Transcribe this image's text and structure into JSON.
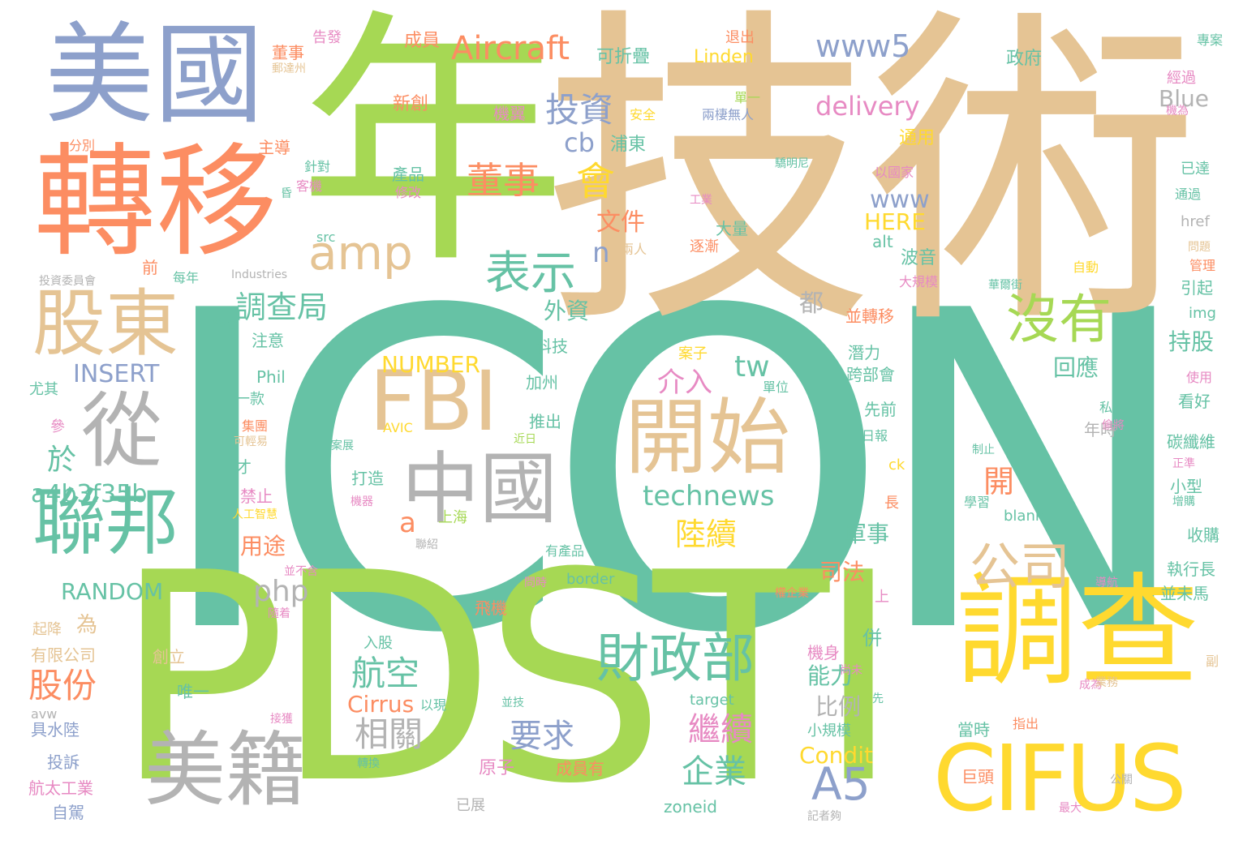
{
  "palette": {
    "teal": "#66c2a5",
    "orange": "#fc8d62",
    "blue": "#8da0cb",
    "pink": "#e78ac3",
    "green": "#a6d854",
    "yellow": "#ffd92f",
    "tan": "#e5c494",
    "gray": "#b3b3b3"
  },
  "words": [
    {
      "text": "ICON",
      "color": "teal"
    },
    {
      "text": "技術",
      "color": "tan"
    },
    {
      "text": "年",
      "color": "green"
    },
    {
      "text": "PDSTI",
      "color": "green"
    },
    {
      "text": "轉移",
      "color": "orange"
    },
    {
      "text": "美國",
      "color": "blue"
    },
    {
      "text": "調查",
      "color": "yellow"
    },
    {
      "text": "CIFUS",
      "color": "yellow"
    },
    {
      "text": "開始",
      "color": "tan"
    },
    {
      "text": "FBI",
      "color": "tan"
    },
    {
      "text": "中國",
      "color": "gray"
    },
    {
      "text": "股東",
      "color": "tan"
    },
    {
      "text": "從",
      "color": "gray"
    },
    {
      "text": "聯邦",
      "color": "teal"
    },
    {
      "text": "美籍",
      "color": "gray"
    },
    {
      "text": "財政部",
      "color": "teal"
    },
    {
      "text": "沒有",
      "color": "green"
    },
    {
      "text": "公司",
      "color": "tan"
    },
    {
      "text": "表示",
      "color": "teal"
    },
    {
      "text": "amp",
      "color": "tan"
    },
    {
      "text": "A5",
      "color": "blue"
    },
    {
      "text": "Aircraft",
      "color": "orange"
    },
    {
      "text": "董事",
      "color": "orange"
    },
    {
      "text": "會",
      "color": "yellow"
    },
    {
      "text": "投資",
      "color": "blue"
    },
    {
      "text": "www5",
      "color": "blue"
    },
    {
      "text": "delivery",
      "color": "pink"
    },
    {
      "text": "調查局",
      "color": "teal"
    },
    {
      "text": "航空",
      "color": "teal"
    },
    {
      "text": "相關",
      "color": "gray"
    },
    {
      "text": "繼續",
      "color": "pink"
    },
    {
      "text": "要求",
      "color": "blue"
    },
    {
      "text": "股份",
      "color": "orange"
    },
    {
      "text": "technews",
      "color": "teal"
    },
    {
      "text": "陸續",
      "color": "yellow"
    },
    {
      "text": "企業",
      "color": "teal"
    },
    {
      "text": "介入",
      "color": "pink"
    },
    {
      "text": "INSERT",
      "color": "blue"
    },
    {
      "text": "a4b3f35b",
      "color": "teal"
    },
    {
      "text": "php",
      "color": "gray"
    },
    {
      "text": "RANDOM",
      "color": "teal"
    },
    {
      "text": "NUMBER",
      "color": "yellow"
    },
    {
      "text": "tw",
      "color": "teal"
    },
    {
      "text": "cb",
      "color": "blue"
    },
    {
      "text": "www",
      "color": "blue"
    },
    {
      "text": "HERE",
      "color": "yellow"
    },
    {
      "text": "文件",
      "color": "orange"
    },
    {
      "text": "n",
      "color": "blue"
    },
    {
      "text": "a",
      "color": "orange"
    },
    {
      "text": "於",
      "color": "teal"
    },
    {
      "text": "外資",
      "color": "teal"
    },
    {
      "text": "都",
      "color": "gray"
    },
    {
      "text": "用途",
      "color": "orange"
    },
    {
      "text": "司法",
      "color": "orange"
    },
    {
      "text": "軍事",
      "color": "teal"
    },
    {
      "text": "比例",
      "color": "gray"
    },
    {
      "text": "能力",
      "color": "teal"
    },
    {
      "text": "持股",
      "color": "teal"
    },
    {
      "text": "回應",
      "color": "teal"
    },
    {
      "text": "開",
      "color": "orange"
    },
    {
      "text": "Condit",
      "color": "yellow"
    },
    {
      "text": "Cirrus",
      "color": "orange"
    },
    {
      "text": "Blue",
      "color": "gray"
    },
    {
      "text": "Linden",
      "color": "yellow"
    },
    {
      "text": "浦東",
      "color": "teal"
    },
    {
      "text": "可折疊",
      "color": "teal"
    },
    {
      "text": "成員",
      "color": "orange"
    },
    {
      "text": "退出",
      "color": "orange"
    },
    {
      "text": "告發",
      "color": "pink"
    },
    {
      "text": "政府",
      "color": "teal"
    },
    {
      "text": "專案",
      "color": "teal"
    },
    {
      "text": "經過",
      "color": "pink"
    },
    {
      "text": "董事",
      "color": "orange"
    },
    {
      "text": "新創",
      "color": "orange"
    },
    {
      "text": "機翼",
      "color": "pink"
    },
    {
      "text": "安全",
      "color": "yellow"
    },
    {
      "text": "兩棲無人",
      "color": "blue"
    },
    {
      "text": "產品",
      "color": "teal"
    },
    {
      "text": "修改",
      "color": "pink"
    },
    {
      "text": "主導",
      "color": "orange"
    },
    {
      "text": "針對",
      "color": "teal"
    },
    {
      "text": "客機",
      "color": "pink"
    },
    {
      "text": "通用",
      "color": "yellow"
    },
    {
      "text": "以國家",
      "color": "pink"
    },
    {
      "text": "已達",
      "color": "teal"
    },
    {
      "text": "通過",
      "color": "teal"
    },
    {
      "text": "href",
      "color": "gray"
    },
    {
      "text": "src",
      "color": "teal"
    },
    {
      "text": "alt",
      "color": "teal"
    },
    {
      "text": "波音",
      "color": "teal"
    },
    {
      "text": "大量",
      "color": "teal"
    },
    {
      "text": "逐漸",
      "color": "orange"
    },
    {
      "text": "兩人",
      "color": "tan"
    },
    {
      "text": "自動",
      "color": "yellow"
    },
    {
      "text": "大規模",
      "color": "pink"
    },
    {
      "text": "每年",
      "color": "teal"
    },
    {
      "text": "整合",
      "color": "teal"
    },
    {
      "text": "Industries",
      "color": "gray"
    },
    {
      "text": "投資委員會",
      "color": "gray"
    },
    {
      "text": "前",
      "color": "orange"
    },
    {
      "text": "注意",
      "color": "teal"
    },
    {
      "text": "並轉移",
      "color": "orange"
    },
    {
      "text": "科技",
      "color": "teal"
    },
    {
      "text": "案子",
      "color": "yellow"
    },
    {
      "text": "潛力",
      "color": "teal"
    },
    {
      "text": "跨部會",
      "color": "teal"
    },
    {
      "text": "引起",
      "color": "teal"
    },
    {
      "text": "img",
      "color": "teal"
    },
    {
      "text": "管理",
      "color": "orange"
    },
    {
      "text": "使用",
      "color": "pink"
    },
    {
      "text": "看好",
      "color": "teal"
    },
    {
      "text": "私人",
      "color": "teal"
    },
    {
      "text": "先前",
      "color": "teal"
    },
    {
      "text": "年時",
      "color": "gray"
    },
    {
      "text": "碳纖維",
      "color": "teal"
    },
    {
      "text": "日報",
      "color": "teal"
    },
    {
      "text": "加州",
      "color": "teal"
    },
    {
      "text": "推出",
      "color": "teal"
    },
    {
      "text": "Phil",
      "color": "teal"
    },
    {
      "text": "一款",
      "color": "teal"
    },
    {
      "text": "尤其",
      "color": "teal"
    },
    {
      "text": "參",
      "color": "pink"
    },
    {
      "text": "分別",
      "color": "orange"
    },
    {
      "text": "集團",
      "color": "orange"
    },
    {
      "text": "可輕易",
      "color": "tan"
    },
    {
      "text": "AVIC",
      "color": "yellow"
    },
    {
      "text": "禁止",
      "color": "pink"
    },
    {
      "text": "才",
      "color": "teal"
    },
    {
      "text": "打造",
      "color": "teal"
    },
    {
      "text": "上海",
      "color": "green"
    },
    {
      "text": "ck",
      "color": "yellow"
    },
    {
      "text": "長",
      "color": "orange"
    },
    {
      "text": "學習",
      "color": "teal"
    },
    {
      "text": "blank",
      "color": "teal"
    },
    {
      "text": "小型",
      "color": "teal"
    },
    {
      "text": "收購",
      "color": "teal"
    },
    {
      "text": "執行長",
      "color": "teal"
    },
    {
      "text": "並未馬",
      "color": "teal"
    },
    {
      "text": "有產品",
      "color": "teal"
    },
    {
      "text": "border",
      "color": "teal"
    },
    {
      "text": "聯紹",
      "color": "gray"
    },
    {
      "text": "並不含",
      "color": "pink"
    },
    {
      "text": "起降",
      "color": "tan"
    },
    {
      "text": "為",
      "color": "tan"
    },
    {
      "text": "有限公司",
      "color": "tan"
    },
    {
      "text": "具水陸",
      "color": "blue"
    },
    {
      "text": "投訴",
      "color": "blue"
    },
    {
      "text": "航太工業",
      "color": "pink"
    },
    {
      "text": "自駕",
      "color": "blue"
    },
    {
      "text": "avw",
      "color": "gray"
    },
    {
      "text": "創立",
      "color": "tan"
    },
    {
      "text": "唯一",
      "color": "teal"
    },
    {
      "text": "入股",
      "color": "teal"
    },
    {
      "text": "飛機",
      "color": "orange"
    },
    {
      "text": "機身",
      "color": "pink"
    },
    {
      "text": "併",
      "color": "teal"
    },
    {
      "text": "原子",
      "color": "pink"
    },
    {
      "text": "成員有",
      "color": "orange"
    },
    {
      "text": "已展",
      "color": "gray"
    },
    {
      "text": "zoneid",
      "color": "teal"
    },
    {
      "text": "target",
      "color": "teal"
    },
    {
      "text": "巨頭",
      "color": "orange"
    },
    {
      "text": "當時",
      "color": "teal"
    },
    {
      "text": "小規模",
      "color": "teal"
    },
    {
      "text": "指出",
      "color": "orange"
    },
    {
      "text": "最大",
      "color": "pink"
    },
    {
      "text": "公關",
      "color": "gray"
    },
    {
      "text": "記者夠",
      "color": "gray"
    },
    {
      "text": "轉換",
      "color": "teal"
    },
    {
      "text": "以現",
      "color": "teal"
    },
    {
      "text": "並技",
      "color": "teal"
    },
    {
      "text": "上",
      "color": "pink"
    },
    {
      "text": "權企業",
      "color": "orange"
    },
    {
      "text": "導航",
      "color": "pink"
    },
    {
      "text": "副",
      "color": "tan"
    },
    {
      "text": "成為",
      "color": "pink"
    },
    {
      "text": "尚未",
      "color": "pink"
    },
    {
      "text": "先",
      "color": "teal"
    },
    {
      "text": "問時",
      "color": "pink"
    },
    {
      "text": "人工智慧",
      "color": "yellow"
    },
    {
      "text": "機器",
      "color": "pink"
    },
    {
      "text": "隨着",
      "color": "pink"
    },
    {
      "text": "接獲",
      "color": "pink"
    },
    {
      "text": "業務",
      "color": "tan"
    },
    {
      "text": "驕明尼",
      "color": "teal"
    },
    {
      "text": "華爾街",
      "color": "teal"
    },
    {
      "text": "單位",
      "color": "teal"
    },
    {
      "text": "工業",
      "color": "pink"
    },
    {
      "text": "偷將",
      "color": "pink"
    },
    {
      "text": "制止",
      "color": "teal"
    },
    {
      "text": "正準",
      "color": "pink"
    },
    {
      "text": "增購",
      "color": "teal"
    },
    {
      "text": "問題",
      "color": "tan"
    },
    {
      "text": "案展",
      "color": "teal"
    },
    {
      "text": "近日",
      "color": "green"
    },
    {
      "text": "單一",
      "color": "green"
    },
    {
      "text": "昏",
      "color": "teal"
    },
    {
      "text": "郵達州",
      "color": "tan"
    },
    {
      "text": "機為",
      "color": "pink"
    }
  ]
}
